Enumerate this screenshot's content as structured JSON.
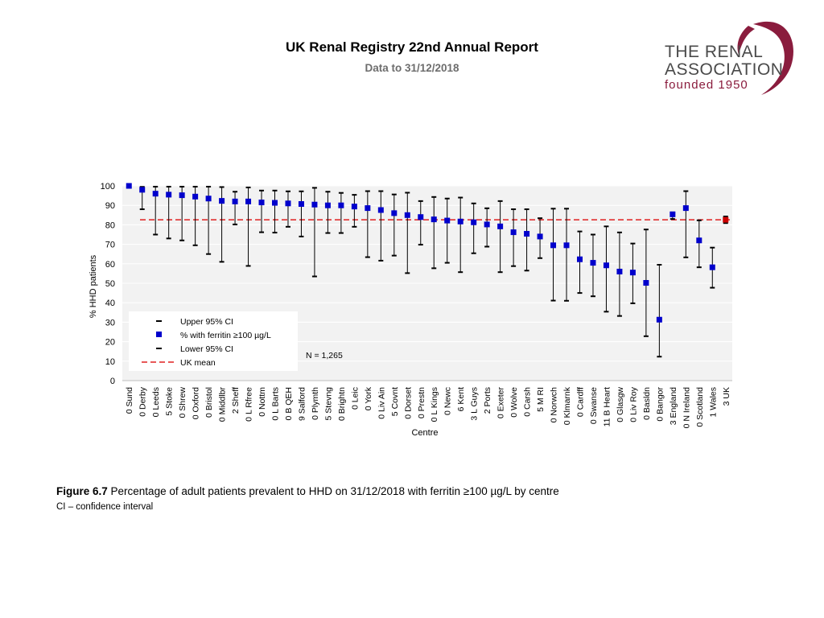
{
  "header": {
    "title": "UK Renal Registry 22nd Annual Report",
    "subtitle": "Data to 31/12/2018"
  },
  "logo": {
    "line1": "THE RENAL",
    "line2": "ASSOCIATION",
    "line3": "founded 1950",
    "color": "#8a1c3d"
  },
  "caption": {
    "figure_label": "Figure 6.7",
    "text": " Percentage of adult patients prevalent to HHD on 31/12/2018 with ferritin ≥100 µg/L by centre",
    "note": "CI – confidence interval"
  },
  "chart_data": {
    "type": "scatter",
    "xlabel": "Centre",
    "ylabel": "% HHD patients",
    "ylim": [
      0,
      100
    ],
    "yticks": [
      0,
      10,
      20,
      30,
      40,
      50,
      60,
      70,
      80,
      90,
      100
    ],
    "uk_mean": 82.6,
    "n_label": "N = 1,265",
    "colors": {
      "point": "#0000cc",
      "uk_point": "#cc0000",
      "mean": "#e02020",
      "ci": "#000000",
      "plot_bg": "#f2f2f2",
      "grid": "#ffffff"
    },
    "legend": [
      {
        "symbol": "dash",
        "label": "Upper 95% CI"
      },
      {
        "symbol": "square",
        "label": "% with ferritin ≥100 µg/L"
      },
      {
        "symbol": "dash",
        "label": "Lower 95% CI"
      },
      {
        "symbol": "redline",
        "label": "UK mean"
      }
    ],
    "categories": [
      "0 Sund",
      "0 Derby",
      "0 Leeds",
      "5 Stoke",
      "0 Shrew",
      "0 Oxford",
      "0 Bristol",
      "0 Middlbr",
      "2 Sheff",
      "0 L Rfree",
      "0 Nottm",
      "0 L Barts",
      "0 B QEH",
      "9 Salford",
      "0 Plymth",
      "5 Stevng",
      "0 Brightn",
      "0 Leic",
      "0 York",
      "0 Liv Ain",
      "5 Covnt",
      "0 Dorset",
      "0 Prestn",
      "0 L Kings",
      "0 Newc",
      "6 Kent",
      "3 L Guys",
      "2 Ports",
      "0 Exeter",
      "0 Wolve",
      "0 Carsh",
      "5 M RI",
      "0 Norwch",
      "0 Klmarnk",
      "0 Cardff",
      "0 Swanse",
      "11 B Heart",
      "0 Glasgw",
      "0 Liv Roy",
      "0 Basldn",
      "0 Bangor",
      "3 England",
      "0 N Ireland",
      "0 Scotland",
      "1 Wales",
      "3 UK"
    ],
    "values": [
      100,
      98,
      96,
      95.5,
      95.2,
      94.5,
      93.5,
      92.3,
      92,
      92,
      91.5,
      91.3,
      91,
      90.7,
      90.4,
      90,
      90,
      89.4,
      88.6,
      87.6,
      86,
      85,
      84,
      82.8,
      82.2,
      81.7,
      81.3,
      80.2,
      79.2,
      76.2,
      75.4,
      74,
      69.5,
      69.5,
      62.3,
      60.5,
      59.2,
      56,
      55.5,
      50.2,
      31.3,
      85.4,
      88.6,
      72,
      58.2,
      82.6
    ],
    "upper": [
      100,
      99.5,
      99.6,
      99.6,
      99.6,
      99.6,
      99.6,
      99.4,
      97,
      99.2,
      97.6,
      97.6,
      97.2,
      97.2,
      99,
      97,
      96.4,
      95.4,
      97.3,
      97.3,
      95.6,
      96.5,
      92.2,
      94.3,
      93.5,
      94,
      91,
      88.5,
      92.2,
      88,
      88,
      83.4,
      88.3,
      88.3,
      76.6,
      75,
      79.2,
      76.1,
      70.4,
      77.6,
      59.5,
      86.4,
      97.3,
      82.3,
      68.3,
      84.3
    ],
    "lower": [
      100,
      88,
      75,
      73,
      72,
      69.5,
      65,
      61,
      80.2,
      58.9,
      76.2,
      76,
      79,
      74,
      53.5,
      75.8,
      75.8,
      79,
      63.4,
      61.6,
      64.2,
      55.2,
      69.8,
      57.7,
      60.5,
      55.7,
      65.4,
      68.8,
      55.7,
      58.8,
      56.5,
      62.9,
      41.1,
      41,
      45,
      43.3,
      35.4,
      33.2,
      39.7,
      22.8,
      12.3,
      83,
      63.3,
      58.2,
      47.7,
      80.9
    ]
  }
}
